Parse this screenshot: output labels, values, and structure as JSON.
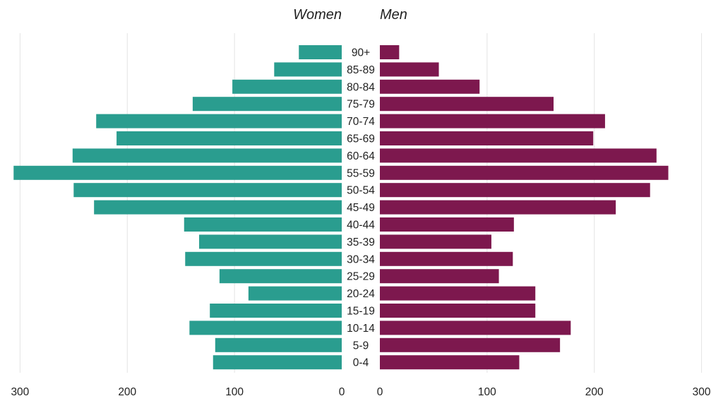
{
  "chart_data": {
    "type": "bar",
    "orientation": "horizontal",
    "layout": "population-pyramid",
    "left_title": "Women",
    "right_title": "Men",
    "categories": [
      "90+",
      "85-89",
      "80-84",
      "75-79",
      "70-74",
      "65-69",
      "60-64",
      "55-59",
      "50-54",
      "45-49",
      "40-44",
      "35-39",
      "30-34",
      "25-29",
      "20-24",
      "15-19",
      "10-14",
      "5-9",
      "0-4"
    ],
    "series": [
      {
        "name": "Women",
        "color": "#2a9d8f",
        "values": [
          40,
          63,
          102,
          139,
          229,
          210,
          251,
          306,
          250,
          231,
          147,
          133,
          146,
          114,
          87,
          123,
          142,
          118,
          120
        ]
      },
      {
        "name": "Men",
        "color": "#7d184e",
        "values": [
          18,
          55,
          93,
          162,
          210,
          199,
          258,
          269,
          252,
          220,
          125,
          104,
          124,
          111,
          145,
          145,
          178,
          168,
          130
        ]
      }
    ],
    "xlim_left": [
      300,
      0
    ],
    "xlim_right": [
      0,
      300
    ],
    "x_ticks_left": [
      "300",
      "200",
      "100",
      "0"
    ],
    "x_ticks_right": [
      "0",
      "100",
      "200",
      "300"
    ],
    "grid": true,
    "legend": "titles-above"
  }
}
